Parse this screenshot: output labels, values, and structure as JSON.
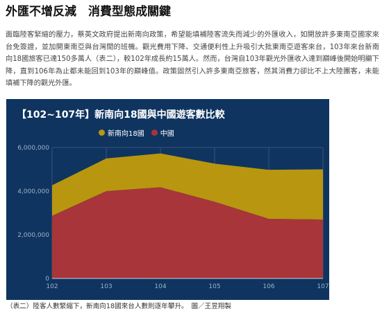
{
  "article": {
    "heading": "外匯不增反減　消費型態成關鍵",
    "paragraph": "面臨陸客緊縮的壓力，蔡英文政府提出新南向政策，希望能填補陸客流失而減少的外匯收入，如開放許多東南亞國家來台免簽證，並加開東南亞與台灣間的班機。觀光費用下降、交通便利性上升吸引大批東南亞遊客來台，103年來台新南向18國旅客已達150多萬人（表二），較102年成長約15萬人。然而，台灣自103年觀光外匯收入達到巔峰後開始明顯下降，直到106年為止都未能回到103年的巔峰值。政策固然引入許多東南亞旅客，然其消費力卻比不上大陸團客，未能填補下降的觀光外匯。"
  },
  "chart_title": "【102~107年】新南向18國與中國遊客數比較",
  "caption": "（表二）陸客人數緊縮下，新南向18國來台人數則逐年攀升。　圖／王昱翔製",
  "colors": {
    "background": "#0f3460",
    "southbound": "#b8960f",
    "china": "#a8353a",
    "grid": "#3a5578",
    "tick_text": "#9fb2c8"
  },
  "chart_data": {
    "type": "area",
    "stacked": true,
    "x": [
      "102",
      "103",
      "104",
      "105",
      "106",
      "107"
    ],
    "series": [
      {
        "name": "中國",
        "values": [
          2870000,
          4000000,
          4180000,
          3510000,
          2730000,
          2700000
        ],
        "color": "#a8353a"
      },
      {
        "name": "新南向18國",
        "values": [
          1400000,
          1500000,
          1550000,
          1750000,
          2250000,
          2300000
        ],
        "color": "#b8960f"
      }
    ],
    "legend_order": [
      "新南向18國",
      "中國"
    ],
    "y_ticks": [
      "0",
      "2,000,000",
      "4,000,000",
      "6,000,000"
    ],
    "ylim": [
      0,
      6000000
    ],
    "grid": true,
    "legend_position": "top"
  }
}
